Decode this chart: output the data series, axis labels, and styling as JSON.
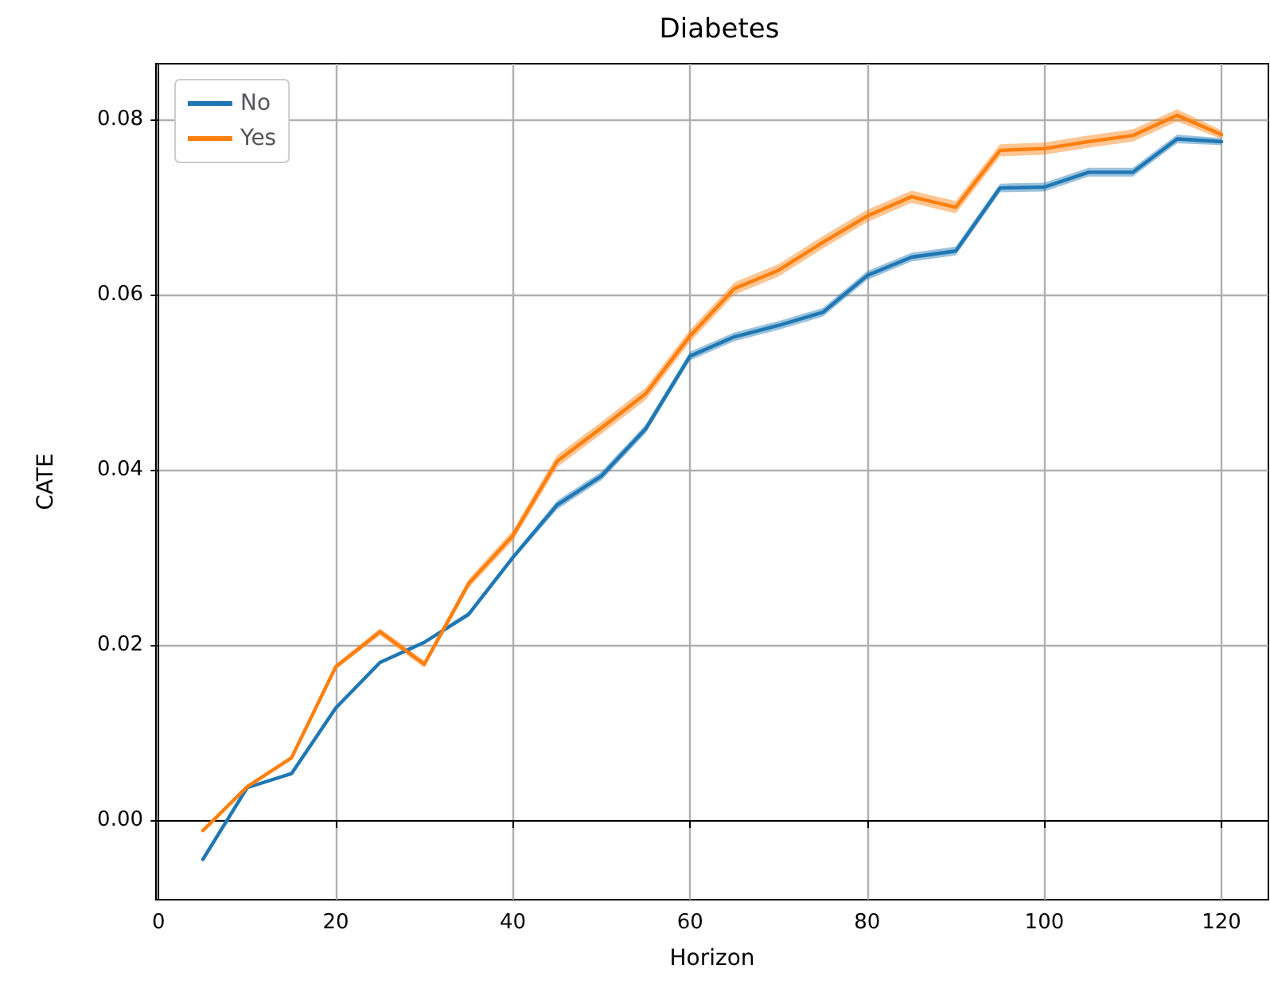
{
  "chart_data": {
    "type": "line",
    "title": "Diabetes",
    "xlabel": "Horizon",
    "ylabel": "CATE",
    "x": [
      5,
      10,
      15,
      20,
      25,
      30,
      35,
      40,
      45,
      50,
      55,
      60,
      65,
      70,
      75,
      80,
      85,
      90,
      95,
      100,
      105,
      110,
      115,
      120
    ],
    "series": [
      {
        "name": "No",
        "color": "#1f77b4",
        "values": [
          -0.0045,
          0.0037,
          0.0053,
          0.0128,
          0.018,
          0.0203,
          0.0235,
          0.03,
          0.036,
          0.0393,
          0.0447,
          0.053,
          0.0552,
          0.0565,
          0.058,
          0.0622,
          0.0643,
          0.065,
          0.0722,
          0.0723,
          0.074,
          0.074,
          0.0778,
          0.0775
        ],
        "lower": [
          -0.0046,
          0.0036,
          0.0052,
          0.0126,
          0.0178,
          0.0201,
          0.0232,
          0.0297,
          0.0355,
          0.0388,
          0.0442,
          0.0525,
          0.0547,
          0.056,
          0.0575,
          0.0617,
          0.0638,
          0.0645,
          0.0717,
          0.0718,
          0.0735,
          0.0735,
          0.0773,
          0.0771
        ],
        "upper": [
          -0.0044,
          0.0038,
          0.0054,
          0.013,
          0.0182,
          0.0205,
          0.0238,
          0.0303,
          0.0365,
          0.0398,
          0.0452,
          0.0535,
          0.0557,
          0.057,
          0.0585,
          0.0627,
          0.0648,
          0.0655,
          0.0727,
          0.0728,
          0.0745,
          0.0745,
          0.0783,
          0.0779
        ]
      },
      {
        "name": "Yes",
        "color": "#ff7f0e",
        "values": [
          -0.0012,
          0.0038,
          0.0071,
          0.0175,
          0.0215,
          0.0178,
          0.027,
          0.0325,
          0.041,
          0.0448,
          0.0487,
          0.0553,
          0.0607,
          0.0628,
          0.066,
          0.069,
          0.0712,
          0.07,
          0.0765,
          0.0767,
          0.0775,
          0.0782,
          0.0805,
          0.0783
        ],
        "lower": [
          -0.0013,
          0.0037,
          0.0069,
          0.0172,
          0.0211,
          0.0174,
          0.0265,
          0.0319,
          0.0403,
          0.0441,
          0.048,
          0.0546,
          0.06,
          0.0621,
          0.0653,
          0.0683,
          0.0705,
          0.0693,
          0.0758,
          0.076,
          0.0768,
          0.0775,
          0.0798,
          0.0778
        ],
        "upper": [
          -0.0011,
          0.0039,
          0.0073,
          0.0178,
          0.0219,
          0.0182,
          0.0275,
          0.0331,
          0.0417,
          0.0455,
          0.0494,
          0.056,
          0.0614,
          0.0635,
          0.0667,
          0.0697,
          0.0719,
          0.0707,
          0.0772,
          0.0774,
          0.0782,
          0.0789,
          0.0812,
          0.0788
        ]
      }
    ],
    "xlim": [
      -0.3,
      125.3
    ],
    "xticks": [
      0,
      20,
      40,
      60,
      80,
      100,
      120
    ],
    "ylim": [
      -0.0091,
      0.0864
    ],
    "yticks": [
      {
        "value": 0,
        "label": "0.00"
      },
      {
        "value": 0.02,
        "label": "0.02"
      },
      {
        "value": 0.04,
        "label": "0.04"
      },
      {
        "value": 0.06,
        "label": "0.06"
      },
      {
        "value": 0.08,
        "label": "0.08"
      }
    ],
    "grid": true,
    "legend": "top left",
    "marker": "none",
    "line_style": "solid"
  }
}
